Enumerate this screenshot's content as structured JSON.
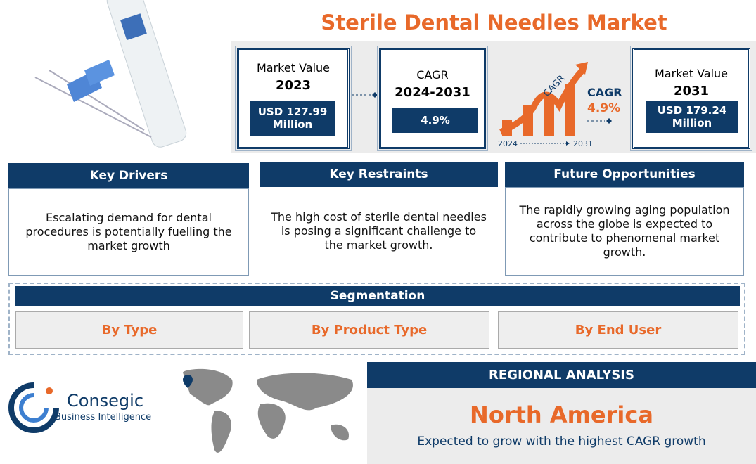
{
  "title": "Sterile Dental Needles Market",
  "stats": {
    "market_value_start": {
      "label": "Market Value",
      "year": "2023",
      "value": "USD 127.99 Million"
    },
    "cagr": {
      "label": "CAGR",
      "period": "2024-2031",
      "value": "4.9%"
    },
    "graphic": {
      "arrow_label": "CAGR",
      "label": "CAGR",
      "value": "4.9%",
      "start_year": "2024",
      "end_year": "2031"
    },
    "market_value_end": {
      "label": "Market Value",
      "year": "2031",
      "value": "USD 179.24 Million"
    }
  },
  "panels": [
    {
      "title": "Key Drivers",
      "text": "Escalating demand for dental procedures is potentially fuelling the market growth"
    },
    {
      "title": "Key Restraints",
      "text": "The high cost of sterile dental needles is posing a significant challenge to the market growth."
    },
    {
      "title": "Future Opportunities",
      "text": "The rapidly growing aging population across the globe is expected to contribute to phenomenal market growth."
    }
  ],
  "segmentation": {
    "title": "Segmentation",
    "items": [
      "By Type",
      "By Product Type",
      "By End User"
    ]
  },
  "logo": {
    "name": "Consegic",
    "tagline": "Business Intelligence"
  },
  "regional": {
    "title": "REGIONAL ANALYSIS",
    "region": "North America",
    "text": "Expected to grow with the highest CAGR growth"
  }
}
